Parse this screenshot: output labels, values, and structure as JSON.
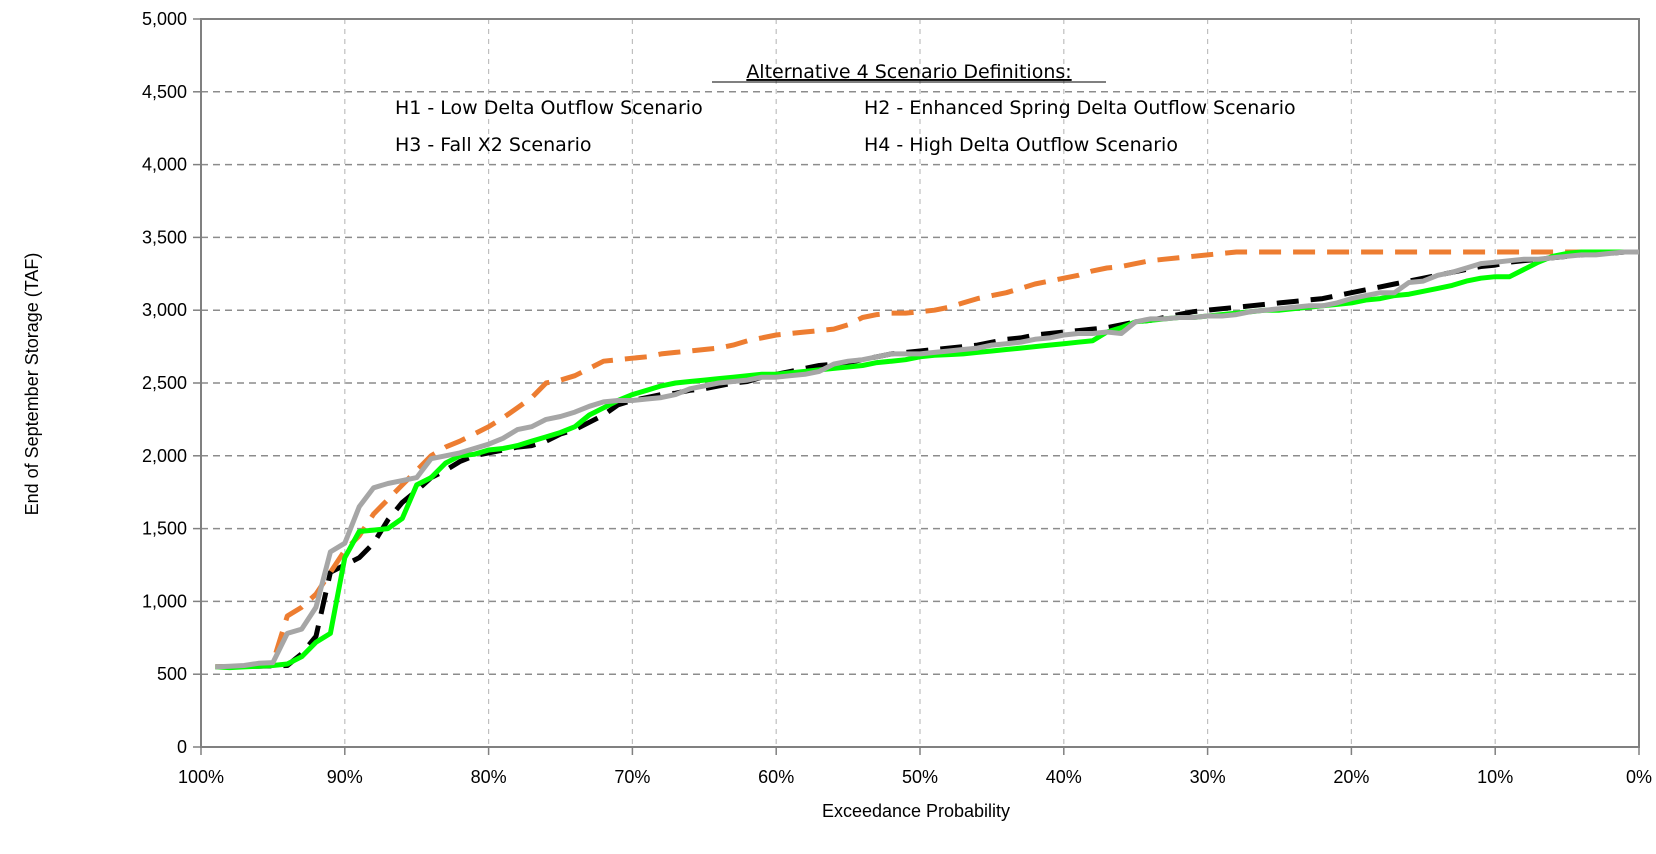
{
  "chart_data": {
    "type": "line",
    "xlabel": "Exceedance Probability",
    "ylabel": "End of September Storage (TAF)",
    "xlim": [
      100,
      0
    ],
    "ylim": [
      0,
      5000
    ],
    "x_ticks": [
      100,
      90,
      80,
      70,
      60,
      50,
      40,
      30,
      20,
      10,
      0
    ],
    "x_tick_labels": [
      "100%",
      "90%",
      "80%",
      "70%",
      "60%",
      "50%",
      "40%",
      "30%",
      "20%",
      "10%",
      "0%"
    ],
    "y_ticks": [
      0,
      500,
      1000,
      1500,
      2000,
      2500,
      3000,
      3500,
      4000,
      4500,
      5000
    ],
    "y_tick_labels": [
      "0",
      "500",
      "1,000",
      "1,500",
      "2,000",
      "2,500",
      "3,000",
      "3,500",
      "4,000",
      "4,500",
      "5,000"
    ],
    "grid": "dashed-major",
    "annotation": {
      "heading": "Alternative 4 Scenario Definitions:",
      "h1": "H1 - Low Delta Outflow Scenario",
      "h2": "H2 - Enhanced Spring Delta Outflow Scenario",
      "h3": "H3 - Fall X2 Scenario",
      "h4": "H4 - High Delta Outflow Scenario"
    },
    "series": [
      {
        "color": "#000000",
        "dash": "dashed",
        "x": [
          99,
          96,
          94,
          93,
          92,
          91,
          90,
          89,
          88,
          87,
          86,
          85,
          84,
          83,
          82,
          81,
          80,
          79,
          78,
          77,
          76,
          75,
          74,
          73,
          72,
          71,
          70,
          69,
          68,
          67,
          66,
          65,
          64,
          63,
          62,
          61,
          60,
          59,
          58,
          57,
          56,
          55,
          54,
          53,
          52,
          51,
          50,
          49,
          48,
          47,
          46,
          45,
          44,
          43,
          42,
          41,
          40,
          39,
          38,
          37,
          36,
          35,
          34,
          33,
          32,
          31,
          30,
          29,
          28,
          27,
          26,
          25,
          24,
          23,
          22,
          21,
          20,
          19,
          18,
          17,
          16,
          15,
          14,
          13,
          12,
          11,
          10,
          9,
          8,
          7,
          6,
          5,
          4,
          3,
          2,
          1,
          0
        ],
        "y": [
          550,
          555,
          560,
          640,
          760,
          1200,
          1250,
          1300,
          1400,
          1560,
          1680,
          1760,
          1850,
          1900,
          1960,
          2000,
          2020,
          2040,
          2060,
          2070,
          2100,
          2150,
          2180,
          2230,
          2280,
          2350,
          2380,
          2400,
          2420,
          2430,
          2450,
          2460,
          2480,
          2500,
          2510,
          2540,
          2560,
          2580,
          2600,
          2620,
          2630,
          2640,
          2660,
          2680,
          2700,
          2710,
          2720,
          2730,
          2740,
          2750,
          2760,
          2780,
          2800,
          2810,
          2830,
          2840,
          2850,
          2860,
          2870,
          2880,
          2900,
          2920,
          2930,
          2950,
          2970,
          2990,
          3000,
          3010,
          3020,
          3030,
          3040,
          3050,
          3060,
          3070,
          3080,
          3100,
          3120,
          3140,
          3160,
          3180,
          3200,
          3220,
          3240,
          3260,
          3280,
          3300,
          3310,
          3330,
          3340,
          3350,
          3360,
          3370,
          3380,
          3390,
          3390,
          3400,
          3400
        ]
      },
      {
        "color": "#ED7D31",
        "dash": "dashed",
        "x": [
          99,
          97,
          96,
          95,
          94,
          93,
          92,
          91,
          90,
          89,
          88,
          87,
          86,
          85,
          84,
          83,
          82,
          81,
          80,
          79,
          78,
          77,
          76,
          75,
          74,
          73,
          72,
          71,
          70,
          69,
          68,
          67,
          66,
          65,
          64,
          63,
          62,
          61,
          60,
          59,
          58,
          57,
          56,
          55,
          54,
          53,
          52,
          51,
          50,
          49,
          48,
          47,
          46,
          45,
          44,
          43,
          42,
          41,
          40,
          39,
          38,
          37,
          36,
          35,
          34,
          33,
          32,
          31,
          30,
          29,
          28,
          27,
          26,
          25,
          20,
          15,
          10,
          5,
          0
        ],
        "y": [
          550,
          555,
          560,
          580,
          900,
          960,
          1050,
          1200,
          1350,
          1450,
          1600,
          1700,
          1800,
          1900,
          2000,
          2060,
          2100,
          2150,
          2200,
          2260,
          2330,
          2400,
          2500,
          2520,
          2550,
          2600,
          2650,
          2660,
          2670,
          2680,
          2700,
          2710,
          2720,
          2730,
          2740,
          2760,
          2790,
          2810,
          2830,
          2840,
          2850,
          2860,
          2870,
          2900,
          2950,
          2970,
          2980,
          2980,
          2990,
          3000,
          3020,
          3050,
          3080,
          3100,
          3120,
          3150,
          3180,
          3200,
          3220,
          3240,
          3270,
          3290,
          3300,
          3320,
          3340,
          3350,
          3360,
          3370,
          3380,
          3390,
          3400,
          3400,
          3400,
          3400,
          3400,
          3400,
          3400,
          3400,
          3400
        ]
      },
      {
        "color": "#00FF00",
        "dash": "solid",
        "x": [
          99,
          98,
          97,
          96,
          95,
          94,
          93,
          92,
          91,
          90,
          89,
          88,
          87,
          86,
          85,
          84,
          83,
          82,
          81,
          80,
          79,
          78,
          77,
          76,
          75,
          74,
          73,
          72,
          71,
          70,
          69,
          68,
          67,
          66,
          65,
          64,
          63,
          62,
          61,
          60,
          59,
          58,
          57,
          56,
          55,
          54,
          53,
          52,
          51,
          50,
          49,
          48,
          47,
          46,
          45,
          44,
          43,
          42,
          41,
          40,
          39,
          38,
          37,
          36,
          35,
          34,
          33,
          32,
          31,
          30,
          29,
          28,
          27,
          26,
          25,
          24,
          23,
          22,
          21,
          20,
          19,
          18,
          17,
          16,
          15,
          14,
          13,
          12,
          11,
          10,
          9,
          8,
          7,
          6,
          5,
          4,
          3,
          2,
          1,
          0
        ],
        "y": [
          550,
          545,
          550,
          555,
          560,
          570,
          620,
          720,
          780,
          1300,
          1480,
          1490,
          1500,
          1570,
          1800,
          1850,
          1950,
          2000,
          2010,
          2040,
          2050,
          2070,
          2100,
          2130,
          2160,
          2200,
          2280,
          2330,
          2380,
          2420,
          2450,
          2480,
          2500,
          2510,
          2520,
          2530,
          2540,
          2550,
          2560,
          2560,
          2570,
          2580,
          2590,
          2600,
          2610,
          2620,
          2640,
          2650,
          2660,
          2680,
          2690,
          2695,
          2700,
          2710,
          2720,
          2730,
          2740,
          2750,
          2760,
          2770,
          2780,
          2790,
          2850,
          2880,
          2920,
          2930,
          2940,
          2950,
          2950,
          2960,
          2970,
          2980,
          2990,
          3000,
          3000,
          3010,
          3020,
          3030,
          3040,
          3050,
          3070,
          3080,
          3100,
          3110,
          3130,
          3150,
          3170,
          3200,
          3220,
          3230,
          3230,
          3280,
          3330,
          3370,
          3390,
          3400,
          3400,
          3400,
          3400,
          3400
        ]
      },
      {
        "color": "#A6A6A6",
        "dash": "solid",
        "x": [
          99,
          98,
          97,
          96,
          95,
          94,
          93,
          92,
          91,
          90,
          89,
          88,
          87,
          86,
          85,
          84,
          83,
          82,
          81,
          80,
          79,
          78,
          77,
          76,
          75,
          74,
          73,
          72,
          71,
          70,
          69,
          68,
          67,
          66,
          65,
          64,
          63,
          62,
          61,
          60,
          59,
          58,
          57,
          56,
          55,
          54,
          53,
          52,
          51,
          50,
          49,
          48,
          47,
          46,
          45,
          44,
          43,
          42,
          41,
          40,
          39,
          38,
          37,
          36,
          35,
          34,
          33,
          32,
          31,
          30,
          29,
          28,
          27,
          26,
          25,
          24,
          23,
          22,
          21,
          20,
          19,
          18,
          17,
          16,
          15,
          14,
          13,
          12,
          11,
          10,
          9,
          8,
          7,
          6,
          5,
          4,
          3,
          2,
          1,
          0
        ],
        "y": [
          550,
          555,
          560,
          575,
          580,
          780,
          810,
          960,
          1340,
          1400,
          1650,
          1780,
          1810,
          1830,
          1850,
          1980,
          2000,
          2020,
          2050,
          2080,
          2120,
          2180,
          2200,
          2250,
          2270,
          2300,
          2340,
          2370,
          2380,
          2380,
          2390,
          2400,
          2420,
          2460,
          2480,
          2500,
          2510,
          2520,
          2540,
          2540,
          2550,
          2560,
          2580,
          2630,
          2650,
          2660,
          2680,
          2700,
          2700,
          2700,
          2710,
          2720,
          2730,
          2740,
          2760,
          2770,
          2780,
          2800,
          2810,
          2830,
          2840,
          2840,
          2850,
          2840,
          2920,
          2940,
          2940,
          2950,
          2950,
          2960,
          2960,
          2970,
          2990,
          3000,
          3010,
          3020,
          3030,
          3030,
          3050,
          3080,
          3100,
          3120,
          3120,
          3190,
          3200,
          3240,
          3260,
          3290,
          3320,
          3330,
          3340,
          3350,
          3350,
          3360,
          3370,
          3380,
          3380,
          3390,
          3400,
          3400
        ]
      }
    ]
  }
}
